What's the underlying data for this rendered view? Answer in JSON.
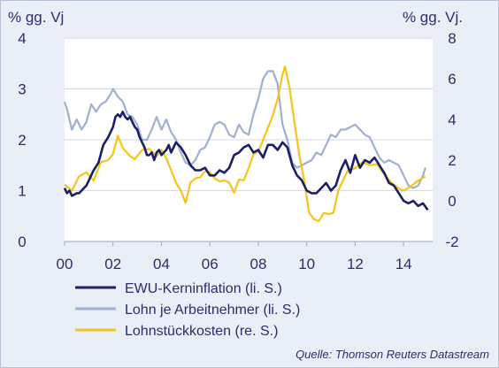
{
  "chart_data": {
    "type": "line",
    "left_axis_unit": "% gg. Vj",
    "right_axis_unit": "% gg. Vj.",
    "left_ylim": [
      0,
      4
    ],
    "right_ylim": [
      -2,
      8
    ],
    "left_ticks": [
      "0",
      "1",
      "2",
      "3",
      "4"
    ],
    "right_ticks": [
      "-2",
      "0",
      "2",
      "4",
      "6",
      "8"
    ],
    "xlim": [
      2000,
      2015.2
    ],
    "x_ticks": [
      {
        "x": 2000,
        "label": "00"
      },
      {
        "x": 2002,
        "label": "02"
      },
      {
        "x": 2004,
        "label": "04"
      },
      {
        "x": 2006,
        "label": "06"
      },
      {
        "x": 2008,
        "label": "08"
      },
      {
        "x": 2010,
        "label": "10"
      },
      {
        "x": 2012,
        "label": "12"
      },
      {
        "x": 2014,
        "label": "14"
      }
    ],
    "grid": "horizontal",
    "legend_placement": "bottom-left",
    "source": "Quelle: Thomson Reuters Datastream",
    "series": [
      {
        "name": "EWU-Kerninflation (li. S.)",
        "axis": "left",
        "color": "#1a1f66",
        "points": [
          [
            2000.0,
            1.05
          ],
          [
            2000.1,
            0.95
          ],
          [
            2000.2,
            1.0
          ],
          [
            2000.3,
            0.9
          ],
          [
            2000.4,
            0.92
          ],
          [
            2000.5,
            0.95
          ],
          [
            2000.6,
            0.95
          ],
          [
            2000.7,
            1.0
          ],
          [
            2000.8,
            1.05
          ],
          [
            2000.9,
            1.1
          ],
          [
            2001.0,
            1.2
          ],
          [
            2001.2,
            1.4
          ],
          [
            2001.4,
            1.55
          ],
          [
            2001.6,
            1.9
          ],
          [
            2001.8,
            2.05
          ],
          [
            2002.0,
            2.25
          ],
          [
            2002.1,
            2.45
          ],
          [
            2002.2,
            2.5
          ],
          [
            2002.3,
            2.45
          ],
          [
            2002.4,
            2.55
          ],
          [
            2002.5,
            2.45
          ],
          [
            2002.6,
            2.4
          ],
          [
            2002.7,
            2.45
          ],
          [
            2002.8,
            2.35
          ],
          [
            2002.9,
            2.25
          ],
          [
            2003.0,
            2.2
          ],
          [
            2003.1,
            2.05
          ],
          [
            2003.2,
            1.95
          ],
          [
            2003.3,
            1.85
          ],
          [
            2003.4,
            1.7
          ],
          [
            2003.5,
            1.7
          ],
          [
            2003.6,
            1.75
          ],
          [
            2003.7,
            1.6
          ],
          [
            2003.8,
            1.75
          ],
          [
            2003.9,
            1.8
          ],
          [
            2004.0,
            1.7
          ],
          [
            2004.2,
            1.8
          ],
          [
            2004.3,
            1.9
          ],
          [
            2004.4,
            1.75
          ],
          [
            2004.6,
            1.95
          ],
          [
            2004.8,
            1.85
          ],
          [
            2005.0,
            1.7
          ],
          [
            2005.2,
            1.5
          ],
          [
            2005.4,
            1.4
          ],
          [
            2005.6,
            1.4
          ],
          [
            2005.8,
            1.45
          ],
          [
            2006.0,
            1.3
          ],
          [
            2006.2,
            1.3
          ],
          [
            2006.4,
            1.4
          ],
          [
            2006.6,
            1.35
          ],
          [
            2006.8,
            1.45
          ],
          [
            2007.0,
            1.7
          ],
          [
            2007.2,
            1.75
          ],
          [
            2007.4,
            1.85
          ],
          [
            2007.6,
            1.9
          ],
          [
            2007.8,
            1.75
          ],
          [
            2008.0,
            1.8
          ],
          [
            2008.2,
            1.65
          ],
          [
            2008.4,
            1.9
          ],
          [
            2008.6,
            1.9
          ],
          [
            2008.8,
            1.8
          ],
          [
            2009.0,
            1.95
          ],
          [
            2009.2,
            1.85
          ],
          [
            2009.4,
            1.5
          ],
          [
            2009.6,
            1.3
          ],
          [
            2009.8,
            1.2
          ],
          [
            2010.0,
            1.0
          ],
          [
            2010.2,
            0.95
          ],
          [
            2010.4,
            0.95
          ],
          [
            2010.6,
            1.05
          ],
          [
            2010.8,
            1.15
          ],
          [
            2011.0,
            1.0
          ],
          [
            2011.2,
            1.1
          ],
          [
            2011.4,
            1.4
          ],
          [
            2011.6,
            1.6
          ],
          [
            2011.8,
            1.35
          ],
          [
            2012.0,
            1.7
          ],
          [
            2012.2,
            1.45
          ],
          [
            2012.4,
            1.6
          ],
          [
            2012.6,
            1.55
          ],
          [
            2012.8,
            1.65
          ],
          [
            2013.0,
            1.5
          ],
          [
            2013.2,
            1.35
          ],
          [
            2013.4,
            1.15
          ],
          [
            2013.6,
            1.1
          ],
          [
            2013.8,
            0.95
          ],
          [
            2014.0,
            0.8
          ],
          [
            2014.2,
            0.75
          ],
          [
            2014.4,
            0.8
          ],
          [
            2014.6,
            0.7
          ],
          [
            2014.8,
            0.75
          ],
          [
            2015.0,
            0.62
          ]
        ]
      },
      {
        "name": "Lohn je Arbeitnehmer (li. S.)",
        "axis": "left",
        "color": "#9fb0d0",
        "points": [
          [
            2000.0,
            2.75
          ],
          [
            2000.1,
            2.6
          ],
          [
            2000.3,
            2.2
          ],
          [
            2000.5,
            2.4
          ],
          [
            2000.7,
            2.2
          ],
          [
            2000.9,
            2.35
          ],
          [
            2001.1,
            2.7
          ],
          [
            2001.3,
            2.55
          ],
          [
            2001.5,
            2.7
          ],
          [
            2001.7,
            2.75
          ],
          [
            2001.9,
            2.9
          ],
          [
            2002.0,
            3.0
          ],
          [
            2002.2,
            2.85
          ],
          [
            2002.4,
            2.75
          ],
          [
            2002.6,
            2.5
          ],
          [
            2002.8,
            2.45
          ],
          [
            2003.0,
            2.3
          ],
          [
            2003.2,
            2.0
          ],
          [
            2003.4,
            2.0
          ],
          [
            2003.6,
            2.2
          ],
          [
            2003.8,
            2.45
          ],
          [
            2004.0,
            2.2
          ],
          [
            2004.2,
            2.4
          ],
          [
            2004.4,
            2.15
          ],
          [
            2004.6,
            2.0
          ],
          [
            2004.8,
            1.75
          ],
          [
            2005.0,
            1.55
          ],
          [
            2005.2,
            1.5
          ],
          [
            2005.4,
            1.6
          ],
          [
            2005.6,
            1.8
          ],
          [
            2005.8,
            1.85
          ],
          [
            2006.0,
            2.05
          ],
          [
            2006.2,
            2.3
          ],
          [
            2006.4,
            2.35
          ],
          [
            2006.6,
            2.3
          ],
          [
            2006.8,
            2.1
          ],
          [
            2007.0,
            2.05
          ],
          [
            2007.2,
            2.3
          ],
          [
            2007.4,
            2.15
          ],
          [
            2007.6,
            2.1
          ],
          [
            2007.8,
            2.5
          ],
          [
            2008.0,
            2.8
          ],
          [
            2008.2,
            3.2
          ],
          [
            2008.4,
            3.35
          ],
          [
            2008.6,
            3.35
          ],
          [
            2008.8,
            3.1
          ],
          [
            2009.0,
            2.3
          ],
          [
            2009.2,
            2.0
          ],
          [
            2009.4,
            1.55
          ],
          [
            2009.6,
            1.45
          ],
          [
            2009.8,
            1.5
          ],
          [
            2010.0,
            1.55
          ],
          [
            2010.2,
            1.6
          ],
          [
            2010.4,
            1.75
          ],
          [
            2010.6,
            1.7
          ],
          [
            2010.8,
            1.9
          ],
          [
            2011.0,
            2.1
          ],
          [
            2011.2,
            2.05
          ],
          [
            2011.4,
            2.2
          ],
          [
            2011.6,
            2.2
          ],
          [
            2011.8,
            2.25
          ],
          [
            2012.0,
            2.3
          ],
          [
            2012.2,
            2.2
          ],
          [
            2012.4,
            2.1
          ],
          [
            2012.6,
            2.05
          ],
          [
            2012.8,
            1.85
          ],
          [
            2013.0,
            1.65
          ],
          [
            2013.2,
            1.55
          ],
          [
            2013.4,
            1.6
          ],
          [
            2013.6,
            1.55
          ],
          [
            2013.8,
            1.5
          ],
          [
            2014.0,
            1.3
          ],
          [
            2014.2,
            1.1
          ],
          [
            2014.4,
            1.05
          ],
          [
            2014.6,
            1.1
          ],
          [
            2014.8,
            1.3
          ],
          [
            2014.9,
            1.45
          ]
        ]
      },
      {
        "name": "Lohnstückkosten (re. S.)",
        "axis": "right",
        "color": "#f5c518",
        "points": [
          [
            2000.0,
            0.8
          ],
          [
            2000.3,
            0.5
          ],
          [
            2000.6,
            1.2
          ],
          [
            2000.9,
            1.4
          ],
          [
            2001.2,
            1.0
          ],
          [
            2001.5,
            1.9
          ],
          [
            2001.8,
            2.0
          ],
          [
            2002.0,
            2.3
          ],
          [
            2002.2,
            3.2
          ],
          [
            2002.4,
            2.6
          ],
          [
            2002.7,
            2.2
          ],
          [
            2002.9,
            2.05
          ],
          [
            2003.2,
            2.5
          ],
          [
            2003.5,
            2.55
          ],
          [
            2003.8,
            2.2
          ],
          [
            2004.0,
            2.5
          ],
          [
            2004.2,
            2.1
          ],
          [
            2004.4,
            1.5
          ],
          [
            2004.6,
            0.9
          ],
          [
            2004.8,
            0.5
          ],
          [
            2005.0,
            -0.1
          ],
          [
            2005.2,
            0.9
          ],
          [
            2005.4,
            1.1
          ],
          [
            2005.6,
            1.15
          ],
          [
            2005.8,
            1.45
          ],
          [
            2006.0,
            1.4
          ],
          [
            2006.2,
            1.1
          ],
          [
            2006.4,
            0.95
          ],
          [
            2006.6,
            1.0
          ],
          [
            2006.8,
            0.9
          ],
          [
            2007.0,
            0.4
          ],
          [
            2007.2,
            1.05
          ],
          [
            2007.4,
            1.0
          ],
          [
            2007.6,
            1.6
          ],
          [
            2007.8,
            2.3
          ],
          [
            2008.0,
            2.4
          ],
          [
            2008.2,
            3.0
          ],
          [
            2008.4,
            3.6
          ],
          [
            2008.6,
            4.2
          ],
          [
            2008.8,
            5.0
          ],
          [
            2009.0,
            6.2
          ],
          [
            2009.1,
            6.6
          ],
          [
            2009.3,
            5.5
          ],
          [
            2009.5,
            3.8
          ],
          [
            2009.7,
            2.2
          ],
          [
            2009.9,
            1.0
          ],
          [
            2010.1,
            -0.6
          ],
          [
            2010.3,
            -0.9
          ],
          [
            2010.5,
            -1.0
          ],
          [
            2010.7,
            -0.6
          ],
          [
            2010.9,
            -0.65
          ],
          [
            2011.1,
            -0.6
          ],
          [
            2011.3,
            0.5
          ],
          [
            2011.5,
            1.0
          ],
          [
            2011.7,
            1.5
          ],
          [
            2012.0,
            1.6
          ],
          [
            2012.3,
            1.9
          ],
          [
            2012.6,
            1.75
          ],
          [
            2012.9,
            1.8
          ],
          [
            2013.2,
            1.3
          ],
          [
            2013.5,
            0.9
          ],
          [
            2013.8,
            0.6
          ],
          [
            2014.0,
            0.5
          ],
          [
            2014.3,
            0.7
          ],
          [
            2014.6,
            1.0
          ],
          [
            2014.9,
            1.2
          ]
        ]
      }
    ]
  }
}
